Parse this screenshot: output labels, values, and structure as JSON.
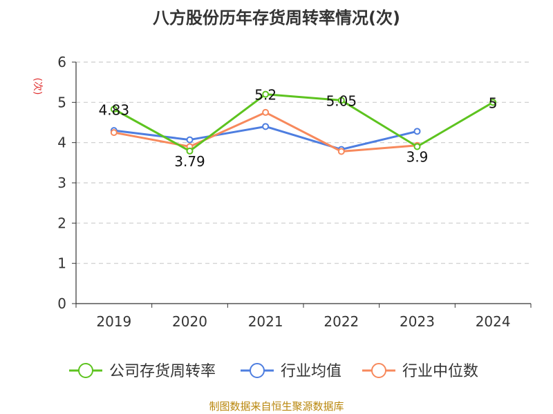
{
  "title": "八方股份历年存货周转率情况(次)",
  "source": "制图数据来自恒生聚源数据库",
  "colors": {
    "company": "#5dc31f",
    "industry_avg": "#4e7ee0",
    "industry_median": "#f7895c",
    "ylabel": "#e03030",
    "grid": "#cccccc",
    "axis": "#333333"
  },
  "chart_data": {
    "type": "line",
    "title": "八方股份历年存货周转率情况(次)",
    "xlabel": "",
    "ylabel": "(次)",
    "categories": [
      "2019",
      "2020",
      "2021",
      "2022",
      "2023",
      "2024"
    ],
    "ylim": [
      0,
      6
    ],
    "yticks": [
      0,
      1,
      2,
      3,
      4,
      5,
      6
    ],
    "grid": true,
    "legend_position": "bottom",
    "series": [
      {
        "name": "公司存货周转率",
        "values": [
          4.83,
          3.79,
          5.2,
          5.05,
          3.9,
          5
        ],
        "labels": [
          "4.83",
          "3.79",
          "5.2",
          "5.05",
          "3.9",
          "5"
        ],
        "color": "#5dc31f"
      },
      {
        "name": "行业均值",
        "values": [
          4.3,
          4.07,
          4.4,
          3.83,
          4.28,
          null
        ],
        "color": "#4e7ee0"
      },
      {
        "name": "行业中位数",
        "values": [
          4.25,
          3.9,
          4.75,
          3.78,
          3.93,
          null
        ],
        "color": "#f7895c"
      }
    ]
  }
}
